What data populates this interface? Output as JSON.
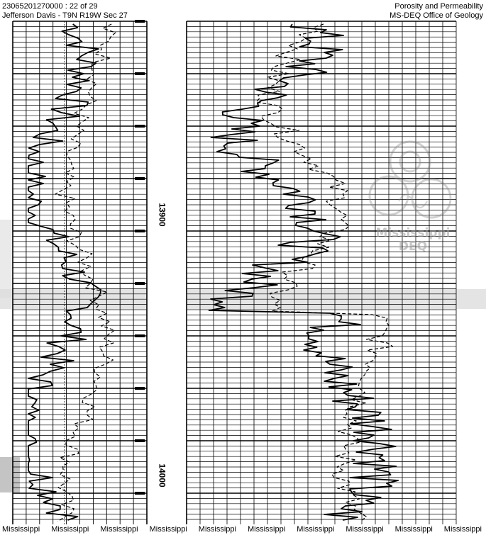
{
  "header": {
    "record": "23065201270000 : 22 of 29",
    "location": "Jefferson Davis - T9N R19W Sec 27",
    "title": "Porosity and Permeability",
    "agency": "MS-DEQ Office of Geology"
  },
  "depth_labels": [
    "13900",
    "14000"
  ],
  "watermark": {
    "line1": "Mississippi",
    "line2": "DEQ"
  },
  "footer_repeat": "Mississippi",
  "footer_count": 10
}
